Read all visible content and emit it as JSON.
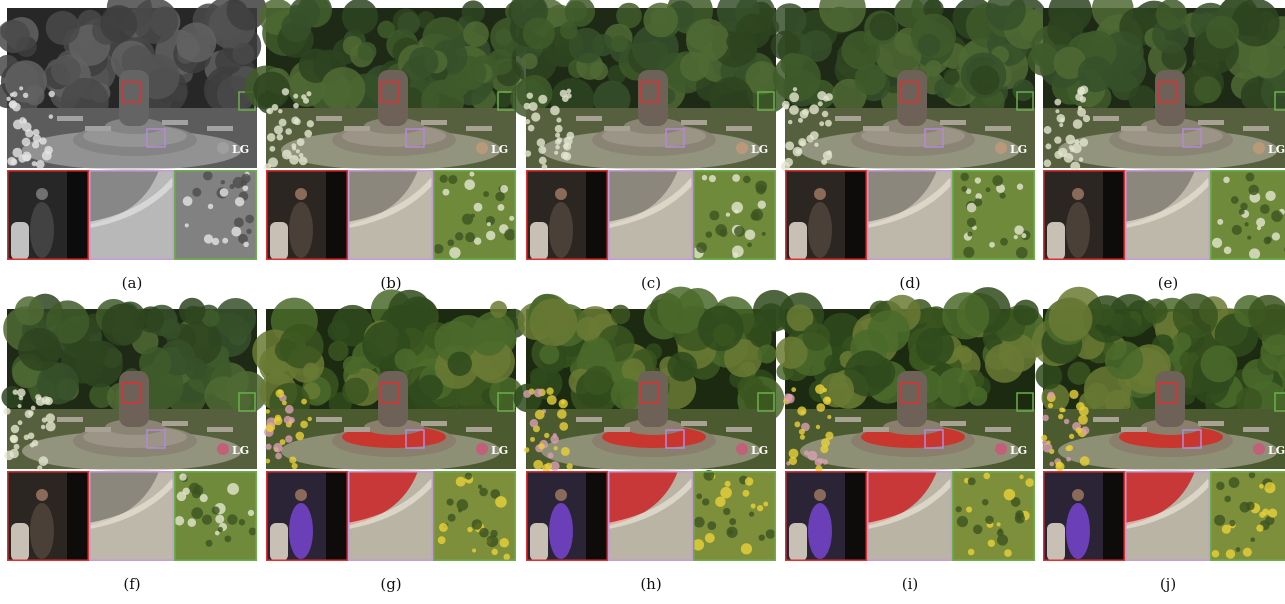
{
  "logo": "LG",
  "panels": [
    {
      "caption": "(a)"
    },
    {
      "caption": "(b)"
    },
    {
      "caption": "(c)"
    },
    {
      "caption": "(d)"
    },
    {
      "caption": "(e)"
    },
    {
      "caption": "(f)"
    },
    {
      "caption": "(g)"
    },
    {
      "caption": "(h)"
    },
    {
      "caption": "(i)"
    },
    {
      "caption": "(j)"
    }
  ]
}
